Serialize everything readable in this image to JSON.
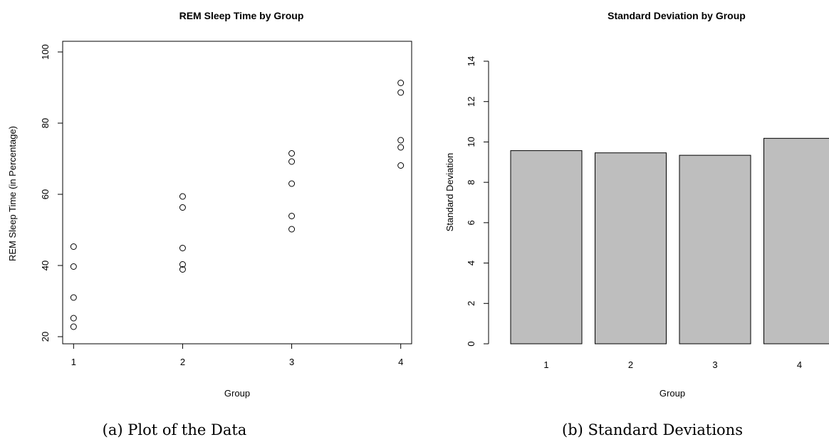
{
  "chart_data": [
    {
      "type": "scatter",
      "title": "REM Sleep Time by Group",
      "xlabel": "Group",
      "ylabel": "REM Sleep Time (in Percentage)",
      "xlim": [
        0.9,
        4.1
      ],
      "ylim": [
        18,
        103
      ],
      "xticks": [
        1,
        2,
        3,
        4
      ],
      "yticks": [
        20,
        40,
        60,
        80,
        100
      ],
      "marker": "open-circle",
      "grid": false,
      "points": [
        {
          "x": 1,
          "y": 45.3
        },
        {
          "x": 1,
          "y": 39.7
        },
        {
          "x": 1,
          "y": 31.0
        },
        {
          "x": 1,
          "y": 25.2
        },
        {
          "x": 1,
          "y": 22.8
        },
        {
          "x": 2,
          "y": 59.4
        },
        {
          "x": 2,
          "y": 56.3
        },
        {
          "x": 2,
          "y": 44.9
        },
        {
          "x": 2,
          "y": 40.3
        },
        {
          "x": 2,
          "y": 38.9
        },
        {
          "x": 3,
          "y": 71.5
        },
        {
          "x": 3,
          "y": 69.2
        },
        {
          "x": 3,
          "y": 63.0
        },
        {
          "x": 3,
          "y": 53.9
        },
        {
          "x": 3,
          "y": 50.2
        },
        {
          "x": 4,
          "y": 91.3
        },
        {
          "x": 4,
          "y": 88.6
        },
        {
          "x": 4,
          "y": 75.2
        },
        {
          "x": 4,
          "y": 73.2
        },
        {
          "x": 4,
          "y": 68.1
        }
      ],
      "caption": "(a) Plot of the Data"
    },
    {
      "type": "bar",
      "title": "Standard Deviation by Group",
      "xlabel": "Group",
      "ylabel": "Standard Deviation",
      "categories": [
        "1",
        "2",
        "3",
        "4"
      ],
      "values": [
        9.57,
        9.46,
        9.34,
        10.18
      ],
      "ylim": [
        0,
        14
      ],
      "yticks": [
        0,
        2,
        4,
        6,
        8,
        10,
        12,
        14
      ],
      "bar_color": "#bebebe",
      "grid": false,
      "caption": "(b) Standard Deviations"
    }
  ]
}
